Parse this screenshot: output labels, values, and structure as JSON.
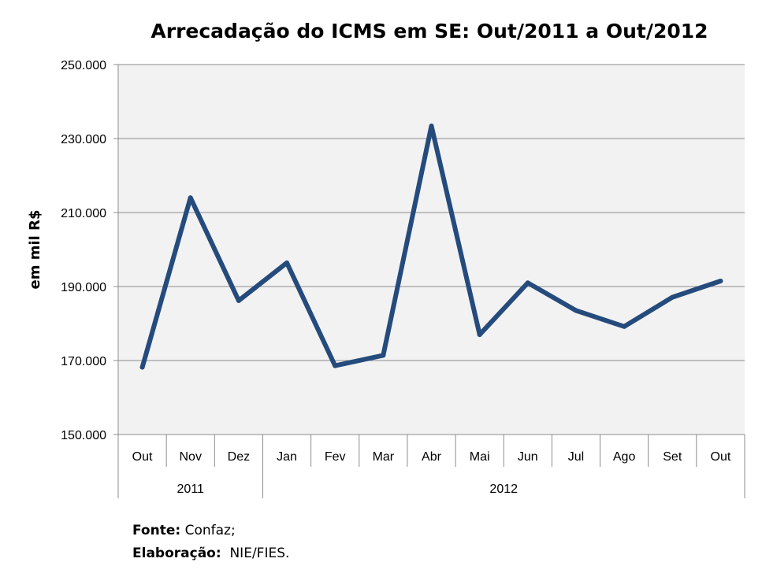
{
  "chart_data": {
    "type": "line",
    "title": "Arrecadação do ICMS em SE: Out/2011 a Out/2012",
    "ylabel": "em mil R$",
    "ylim": [
      150000,
      250000
    ],
    "yticks": [
      150000,
      170000,
      190000,
      210000,
      230000,
      250000
    ],
    "ytick_labels": [
      "150.000",
      "170.000",
      "190.000",
      "210.000",
      "230.000",
      "250.000"
    ],
    "categories": [
      "Out",
      "Nov",
      "Dez",
      "Jan",
      "Fev",
      "Mar",
      "Abr",
      "Mai",
      "Jun",
      "Jul",
      "Ago",
      "Set",
      "Out"
    ],
    "year_groups": [
      {
        "label": "2011",
        "count": 3
      },
      {
        "label": "2012",
        "count": 10
      }
    ],
    "values": [
      168200,
      214000,
      186200,
      196400,
      168600,
      171400,
      233400,
      177000,
      191000,
      183500,
      179200,
      187100,
      191500
    ],
    "grid": true,
    "plot_background": "#f2f2f2",
    "line_color": "#254b7d"
  },
  "source": {
    "fonte_label": "Fonte:",
    "fonte_value": "Confaz;",
    "elaboracao_label": "Elaboração:",
    "elaboracao_value": "NIE/FIES."
  }
}
